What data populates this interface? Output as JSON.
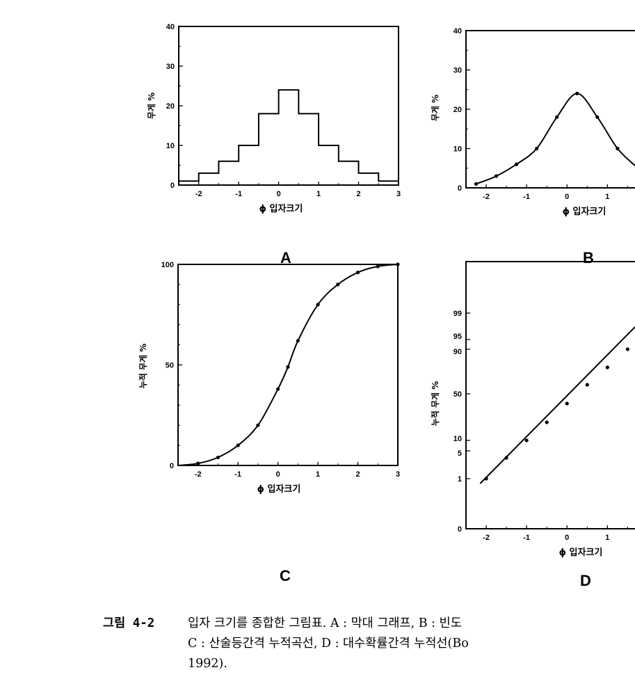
{
  "chart_data": [
    {
      "panel": "A",
      "type": "bar",
      "xlabel": "ϕ 입자크기",
      "ylabel": "무게 %",
      "xlim": [
        -2.5,
        3
      ],
      "ylim": [
        0,
        40
      ],
      "xticks": [
        "-2",
        "-1",
        "0",
        "1",
        "2",
        "3"
      ],
      "yticks": [
        "0",
        "10",
        "20",
        "30",
        "40"
      ],
      "bins": [
        {
          "from": -2.5,
          "to": -2.0,
          "value": 1
        },
        {
          "from": -2.0,
          "to": -1.5,
          "value": 3
        },
        {
          "from": -1.5,
          "to": -1.0,
          "value": 6
        },
        {
          "from": -1.0,
          "to": -0.5,
          "value": 10
        },
        {
          "from": -0.5,
          "to": 0.0,
          "value": 18
        },
        {
          "from": 0.0,
          "to": 0.5,
          "value": 24
        },
        {
          "from": 0.5,
          "to": 1.0,
          "value": 18
        },
        {
          "from": 1.0,
          "to": 1.5,
          "value": 10
        },
        {
          "from": 1.5,
          "to": 2.0,
          "value": 6
        },
        {
          "from": 2.0,
          "to": 2.5,
          "value": 3
        },
        {
          "from": 2.5,
          "to": 3.0,
          "value": 1
        }
      ]
    },
    {
      "panel": "B",
      "type": "line",
      "xlabel": "ϕ 입자크기",
      "ylabel": "무게 %",
      "xlim": [
        -2.5,
        1.7
      ],
      "ylim": [
        0,
        40
      ],
      "xticks": [
        "-2",
        "-1",
        "0",
        "1"
      ],
      "yticks": [
        "0",
        "10",
        "20",
        "30",
        "40"
      ],
      "x": [
        -2.25,
        -1.75,
        -1.25,
        -0.75,
        -0.25,
        0.25,
        0.75,
        1.25,
        1.7
      ],
      "y": [
        1,
        3,
        6,
        10,
        18,
        24,
        18,
        10,
        5.5
      ]
    },
    {
      "panel": "C",
      "type": "line",
      "xlabel": "ϕ 입자크기",
      "ylabel": "누적 무게 %",
      "xlim": [
        -2.5,
        3
      ],
      "ylim": [
        0,
        100
      ],
      "xticks": [
        "-2",
        "-1",
        "0",
        "1",
        "2",
        "3"
      ],
      "yticks": [
        "0",
        "50",
        "100"
      ],
      "x": [
        -2.5,
        -2.0,
        -1.5,
        -1.0,
        -0.5,
        0.0,
        0.25,
        0.5,
        1.0,
        1.5,
        2.0,
        2.5,
        3.0
      ],
      "y": [
        0,
        1,
        4,
        10,
        20,
        38,
        49,
        62,
        80,
        90,
        96,
        99,
        100
      ]
    },
    {
      "panel": "D",
      "type": "line",
      "xlabel": "ϕ 입자크기",
      "ylabel": "누적 무게 %",
      "xlim": [
        -2.5,
        1.7
      ],
      "yscale": "probability",
      "xticks": [
        "-2",
        "-1",
        "0",
        "1"
      ],
      "yticks": [
        "0",
        "1",
        "5",
        "10",
        "50",
        "90",
        "95",
        "99"
      ],
      "x": [
        -2.0,
        -1.5,
        -1.0,
        -0.5,
        0.0,
        0.5,
        1.0,
        1.5
      ],
      "y": [
        1,
        4,
        10,
        20,
        38,
        62,
        80,
        90
      ]
    }
  ],
  "panel_labels": {
    "a": "A",
    "b": "B",
    "c": "C",
    "d": "D"
  },
  "caption": {
    "number": "그림 4-2",
    "line1": "입자 크기를 종합한 그림표. A : 막대 그래프, B : 빈도",
    "line2": "C : 산술등간격 누적곡선, D : 대수확률간격 누적선(Bo",
    "line3": "1992)."
  }
}
